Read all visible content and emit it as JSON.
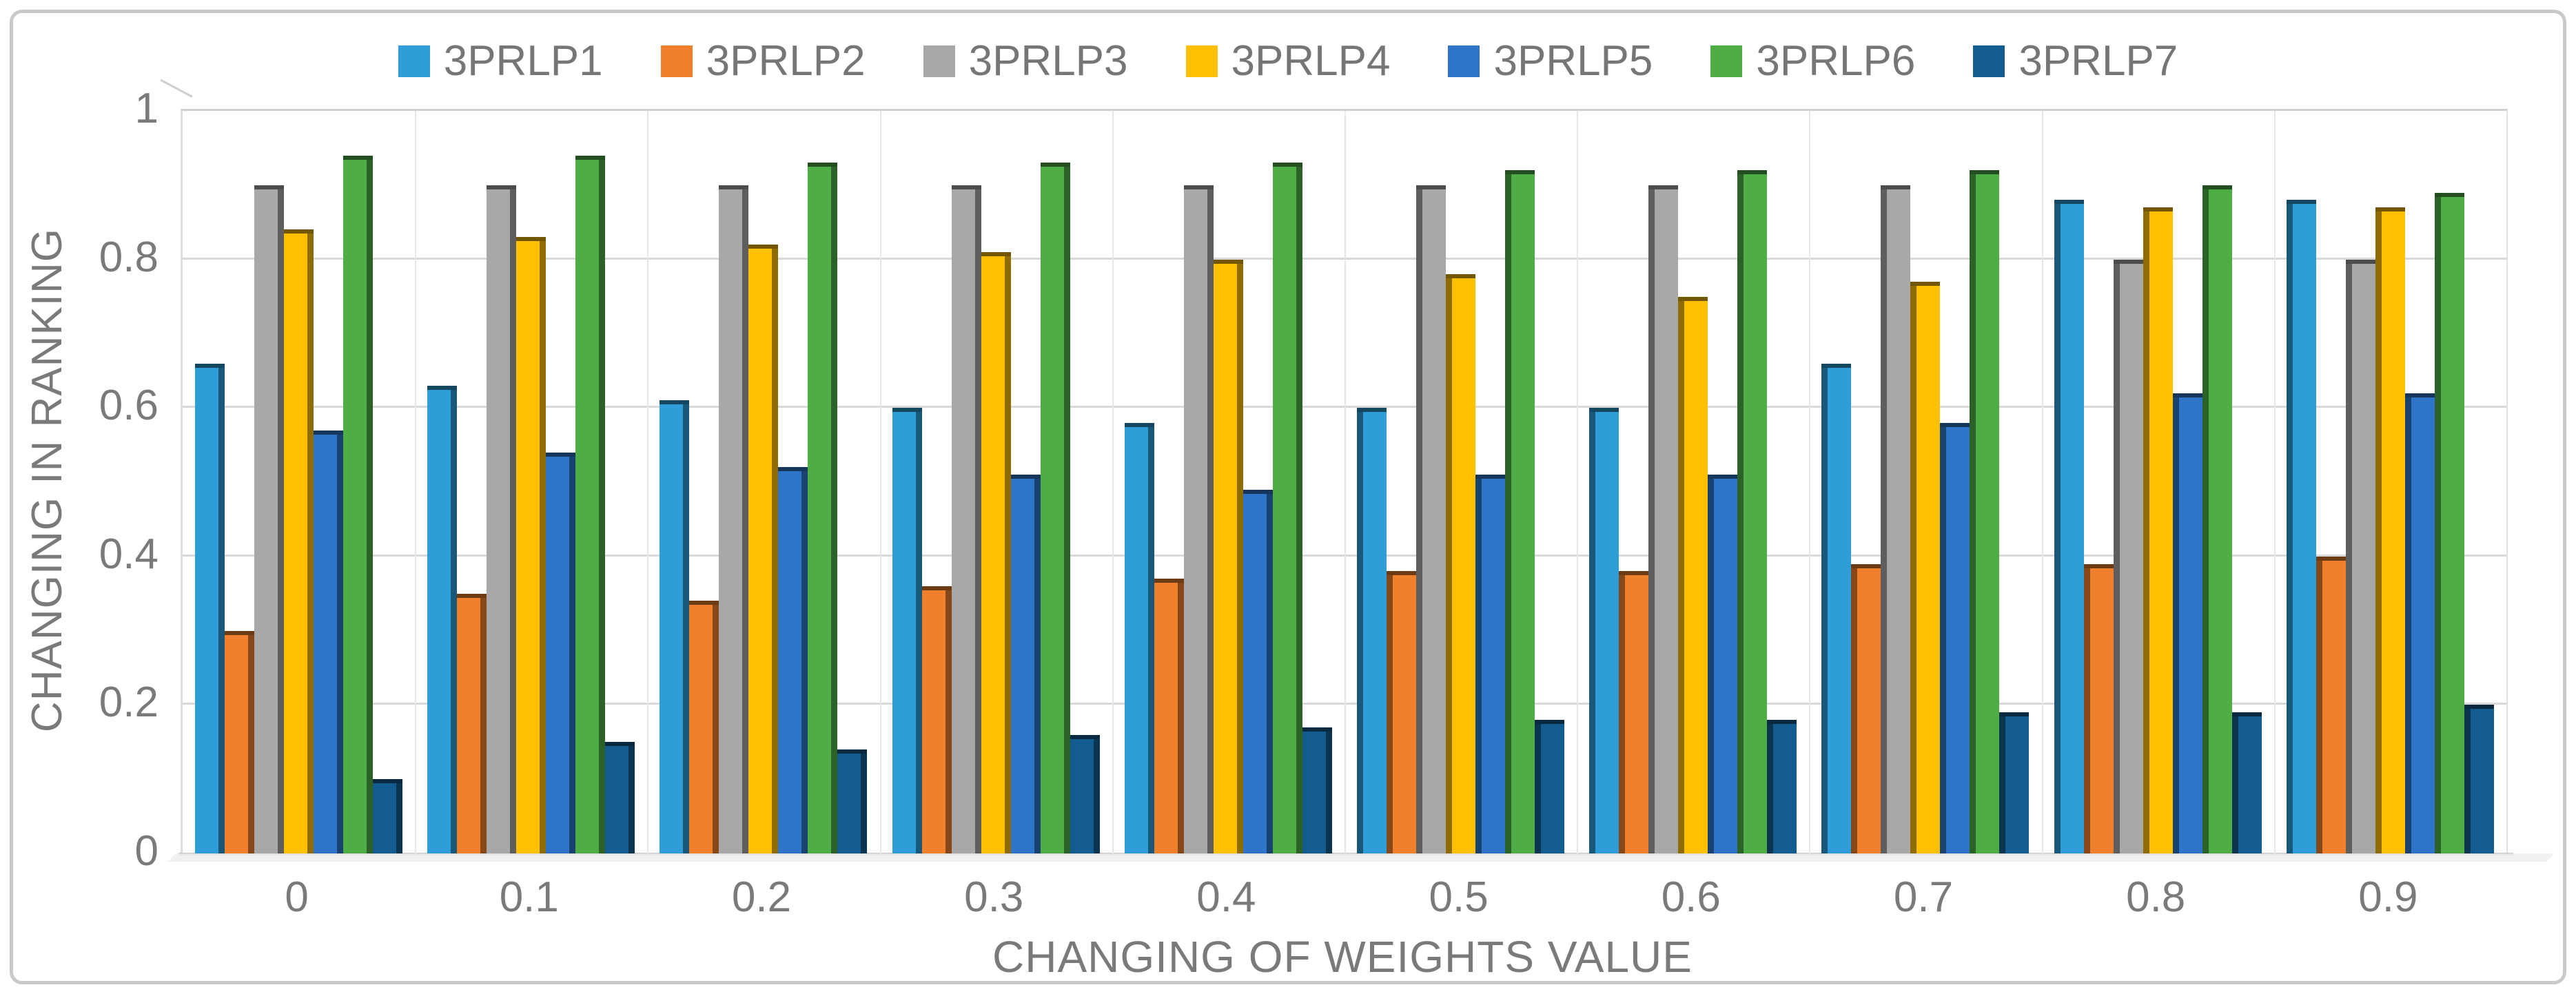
{
  "figure": {
    "background": "#ffffff",
    "frame_border_color": "#c9c9c9",
    "text_color": "#7a7a7a"
  },
  "chart_data": {
    "type": "bar",
    "title": "",
    "xlabel": "CHANGING OF WEIGHTS VALUE",
    "ylabel": "CHANGING IN RANKING",
    "categories": [
      "0",
      "0.1",
      "0.2",
      "0.3",
      "0.4",
      "0.5",
      "0.6",
      "0.7",
      "0.8",
      "0.9"
    ],
    "series": [
      {
        "name": "3PRLP1",
        "color": "#2E9DD8",
        "values": [
          0.66,
          0.63,
          0.61,
          0.6,
          0.58,
          0.6,
          0.6,
          0.66,
          0.88,
          0.88
        ]
      },
      {
        "name": "3PRLP2",
        "color": "#F0802B",
        "values": [
          0.3,
          0.35,
          0.34,
          0.36,
          0.37,
          0.38,
          0.38,
          0.39,
          0.39,
          0.4
        ]
      },
      {
        "name": "3PRLP3",
        "color": "#A8A8A8",
        "values": [
          0.9,
          0.9,
          0.9,
          0.9,
          0.9,
          0.9,
          0.9,
          0.9,
          0.8,
          0.8
        ]
      },
      {
        "name": "3PRLP4",
        "color": "#FFC001",
        "values": [
          0.84,
          0.83,
          0.82,
          0.81,
          0.8,
          0.78,
          0.75,
          0.77,
          0.87,
          0.87
        ]
      },
      {
        "name": "3PRLP5",
        "color": "#2E75C9",
        "values": [
          0.57,
          0.54,
          0.52,
          0.51,
          0.49,
          0.51,
          0.51,
          0.58,
          0.62,
          0.62
        ]
      },
      {
        "name": "3PRLP6",
        "color": "#4EAE45",
        "values": [
          0.94,
          0.94,
          0.93,
          0.93,
          0.93,
          0.92,
          0.92,
          0.92,
          0.9,
          0.89
        ]
      },
      {
        "name": "3PRLP7",
        "color": "#135C90",
        "values": [
          0.1,
          0.15,
          0.14,
          0.16,
          0.17,
          0.18,
          0.18,
          0.19,
          0.19,
          0.2
        ]
      }
    ],
    "ylim": [
      0,
      1
    ],
    "ytick_labels": [
      "1",
      "0.8",
      "0.6",
      "0.4",
      "0.2",
      "0"
    ],
    "grid": "horizontal major every 0.2; vertical lines at category boundaries",
    "legend_position": "top-center",
    "bar_style": "pseudo-3d clustered columns"
  }
}
